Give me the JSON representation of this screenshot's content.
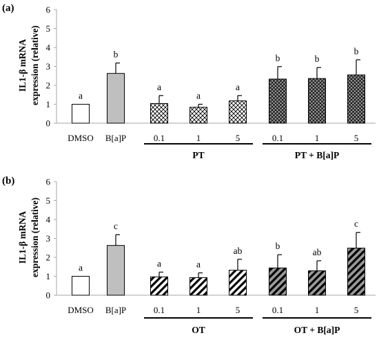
{
  "chart_data": [
    {
      "type": "bar",
      "panel_label": "(a)",
      "ylabel_lines": [
        "IL1-β mRNA",
        "expression (relative)"
      ],
      "ylim": [
        0,
        6
      ],
      "yticks": [
        0,
        1,
        2,
        3,
        4,
        5,
        6
      ],
      "categories": [
        "DMSO",
        "B[a]P",
        "0.1",
        "1",
        "5",
        "0.1",
        "1",
        "5"
      ],
      "values": [
        1.0,
        2.63,
        1.04,
        0.84,
        1.18,
        2.33,
        2.36,
        2.55
      ],
      "errors": [
        0.0,
        0.55,
        0.42,
        0.16,
        0.28,
        0.66,
        0.58,
        0.8
      ],
      "significance": [
        "a",
        "b",
        "a",
        "a",
        "a",
        "b",
        "b",
        "b"
      ],
      "fills": [
        "white",
        "gray",
        "crosshatch",
        "crosshatch",
        "crosshatch",
        "crosshatch-dark",
        "crosshatch-dark",
        "crosshatch-dark"
      ],
      "groups": [
        {
          "label": "PT",
          "from": 2,
          "to": 4
        },
        {
          "label": "PT + B[a]P",
          "from": 5,
          "to": 7
        }
      ]
    },
    {
      "type": "bar",
      "panel_label": "(b)",
      "ylabel_lines": [
        "IL1-β mRNA",
        "expression (relative)"
      ],
      "ylim": [
        0,
        6
      ],
      "yticks": [
        0,
        1,
        2,
        3,
        4,
        5,
        6
      ],
      "categories": [
        "DMSO",
        "B[a]P",
        "0.1",
        "1",
        "5",
        "0.1",
        "1",
        "5"
      ],
      "values": [
        1.0,
        2.63,
        0.97,
        0.93,
        1.32,
        1.44,
        1.29,
        2.49
      ],
      "errors": [
        0.0,
        0.57,
        0.25,
        0.25,
        0.58,
        0.7,
        0.53,
        0.83
      ],
      "significance": [
        "a",
        "c",
        "a",
        "a",
        "ab",
        "b",
        "ab",
        "c"
      ],
      "fills": [
        "white",
        "gray",
        "stripe",
        "stripe",
        "stripe",
        "stripe-dark",
        "stripe-dark",
        "stripe-dark"
      ],
      "groups": [
        {
          "label": "OT",
          "from": 2,
          "to": 4
        },
        {
          "label": "OT + B[a]P",
          "from": 5,
          "to": 7
        }
      ]
    }
  ],
  "colors": {
    "axis": "#a6a6a6",
    "outline": "#000000",
    "gray_fill": "#bfbfbf",
    "dark_pattern_bg": "#9a9a9a"
  }
}
